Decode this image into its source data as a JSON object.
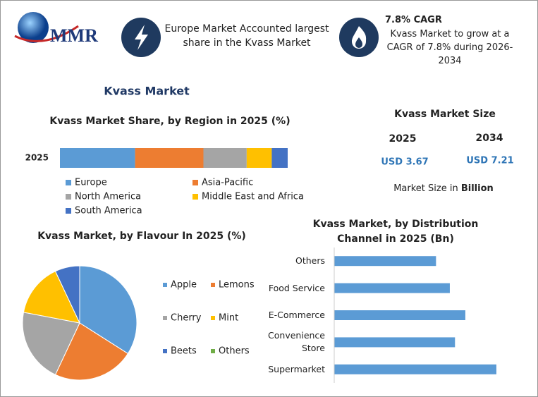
{
  "logo": "MMR",
  "info": [
    {
      "text": "Europe Market Accounted largest share in the Kvass Market"
    },
    {
      "title": "7.8% CAGR",
      "text": "Kvass Market to grow at a CAGR of 7.8% during 2026-2034"
    }
  ],
  "title": "Kvass Market",
  "market_size": {
    "title": "Kvass Market Size",
    "years": [
      "2025",
      "2034"
    ],
    "values": [
      "USD 3.67",
      "USD 7.21"
    ],
    "note": "Market Size in",
    "unit": "Billion"
  },
  "chart_data": [
    {
      "type": "stacked-bar",
      "title": "Kvass Market Share, by Region in 2025 (%)",
      "categories": [
        "2025"
      ],
      "series": [
        {
          "name": "Europe",
          "color": "#5b9bd5",
          "values": [
            33
          ]
        },
        {
          "name": "Asia-Pacific",
          "color": "#ed7d31",
          "values": [
            30
          ]
        },
        {
          "name": "North America",
          "color": "#a5a5a5",
          "values": [
            19
          ]
        },
        {
          "name": "Middle East and Africa",
          "color": "#ffc000",
          "values": [
            11
          ]
        },
        {
          "name": "South America",
          "color": "#4472c4",
          "values": [
            7
          ]
        }
      ]
    },
    {
      "type": "pie",
      "title": "Kvass Market, by Flavour In 2025 (%)",
      "categories": [
        "Apple",
        "Lemons",
        "Cherry",
        "Mint",
        "Beets",
        "Others"
      ],
      "values": [
        34,
        23,
        21,
        15,
        7,
        0
      ],
      "colors": [
        "#5b9bd5",
        "#ed7d31",
        "#a5a5a5",
        "#ffc000",
        "#4472c4",
        "#70ad47"
      ]
    },
    {
      "type": "hbar",
      "title": "Kvass Market, by Distribution Channel in 2025 (Bn)",
      "categories": [
        "Others",
        "Food Service",
        "E-Commerce",
        "Convenience Store",
        "Supermarket"
      ],
      "values": [
        0.59,
        0.67,
        0.76,
        0.7,
        0.94
      ],
      "color": "#5b9bd5"
    }
  ]
}
